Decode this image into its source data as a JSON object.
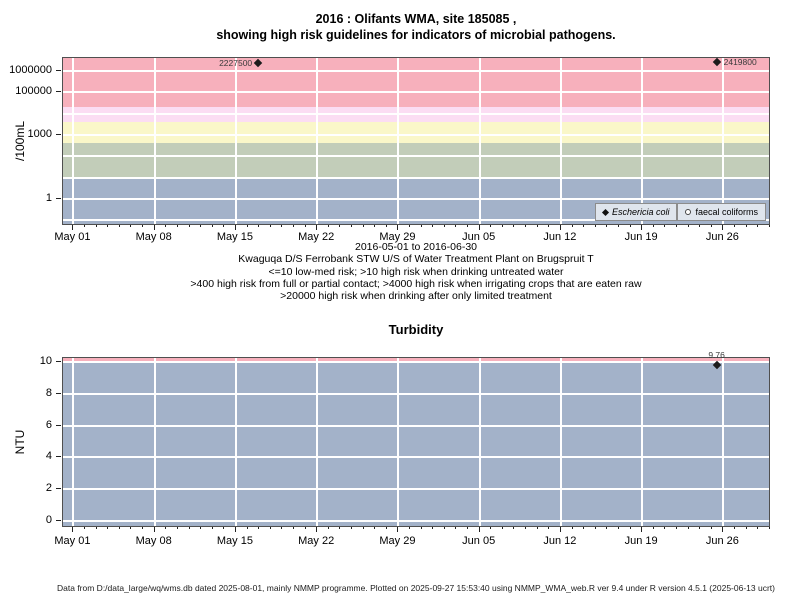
{
  "title": {
    "line1": "2016 : Olifants WMA, site 185085 ,",
    "line2": "showing high risk guidelines for indicators of microbial pathogens."
  },
  "chart_data": [
    {
      "id": "microbial-pathogens",
      "type": "scatter",
      "yscale": "log",
      "ylabel": "/100mL",
      "ylim_log": [
        -1.27,
        6.61
      ],
      "grid_decades": [
        -1,
        0,
        1,
        2,
        3,
        4,
        5,
        6
      ],
      "yticks": [
        {
          "label": "1000000",
          "value": 1000000
        },
        {
          "label": "100000",
          "value": 100000
        },
        {
          "label": "1000",
          "value": 1000
        },
        {
          "label": "1",
          "value": 1
        }
      ],
      "x_axis": {
        "min_day": -0.9,
        "max_day": 60.1,
        "tick_labels": [
          "May 01",
          "May 08",
          "May 15",
          "May 22",
          "May 29",
          "Jun 05",
          "Jun 12",
          "Jun 19",
          "Jun 26"
        ],
        "tick_days": [
          0,
          7,
          14,
          21,
          28,
          35,
          42,
          49,
          56
        ],
        "minor_tick_day_range": [
          0,
          60
        ]
      },
      "bands": [
        {
          "name": "gt-20000-high-risk",
          "from_log": 4.30103,
          "to_log": 6.61,
          "color": "#F7B0BC"
        },
        {
          "name": "4000-to-20000",
          "from_log": 3.60206,
          "to_log": 4.30103,
          "color": "#FBDDF3"
        },
        {
          "name": "400-to-4000",
          "from_log": 2.60206,
          "to_log": 3.60206,
          "color": "#FAF7C9"
        },
        {
          "name": "10-to-400",
          "from_log": 1.0,
          "to_log": 2.60206,
          "color": "#C2CDB9"
        },
        {
          "name": "le-10-low-med",
          "from_log": -1.27,
          "to_log": 1.0,
          "color": "#A3B2C9"
        }
      ],
      "series": [
        {
          "name": "Eschericia coli",
          "marker": "filled-diamond",
          "points": [
            {
              "day": 16,
              "value": 2227500,
              "label": "2227500",
              "label_side": "left"
            },
            {
              "day": 55.5,
              "value": 2419800,
              "label": "2419800",
              "label_side": "right"
            }
          ]
        },
        {
          "name": "faecal coliforms",
          "marker": "open-circle",
          "points": []
        }
      ],
      "legend": [
        {
          "marker": "filled-diamond",
          "label": "Eschericia coli"
        },
        {
          "marker": "open-circle",
          "label": "faecal coliforms"
        }
      ],
      "caption_lines": [
        "2016-05-01 to 2016-06-30",
        "Kwaguqa D/S Ferrobank STW U/S of Water Treatment Plant on Brugspruit T",
        "<=10 low-med risk; >10 high risk when drinking untreated water",
        ">400 high risk from full or partial contact; >4000 high risk when irrigating crops that are eaten raw",
        ">20000 high risk when drinking after only limited treatment"
      ]
    },
    {
      "id": "turbidity",
      "type": "scatter",
      "title": "Turbidity",
      "yscale": "linear",
      "ylabel": "NTU",
      "ylim": [
        -0.47,
        10.28
      ],
      "yticks": [
        0,
        2,
        4,
        6,
        8,
        10
      ],
      "x_axis": {
        "min_day": -0.9,
        "max_day": 60.1,
        "tick_labels": [
          "May 01",
          "May 08",
          "May 15",
          "May 22",
          "May 29",
          "Jun 05",
          "Jun 12",
          "Jun 19",
          "Jun 26"
        ],
        "tick_days": [
          0,
          7,
          14,
          21,
          28,
          35,
          42,
          49,
          56
        ],
        "minor_tick_day_range": [
          0,
          60
        ]
      },
      "bands": [
        {
          "name": "gt-10-risk",
          "from": 10,
          "to": 10.28,
          "color": "#F7B0BC"
        },
        {
          "name": "main-area",
          "from": -0.47,
          "to": 10,
          "color": "#A3B2C9"
        }
      ],
      "points": [
        {
          "day": 55.5,
          "value": 9.76,
          "label": "9.76",
          "label_side": "top"
        }
      ]
    }
  ],
  "footer": "Data from D:/data_large/wq/wms.db dated 2025-08-01, mainly NMMP programme. Plotted on 2025-09-27 15:53:40 using NMMP_WMA_web.R ver 9.4 under R version 4.5.1 (2025-06-13 ucrt)"
}
